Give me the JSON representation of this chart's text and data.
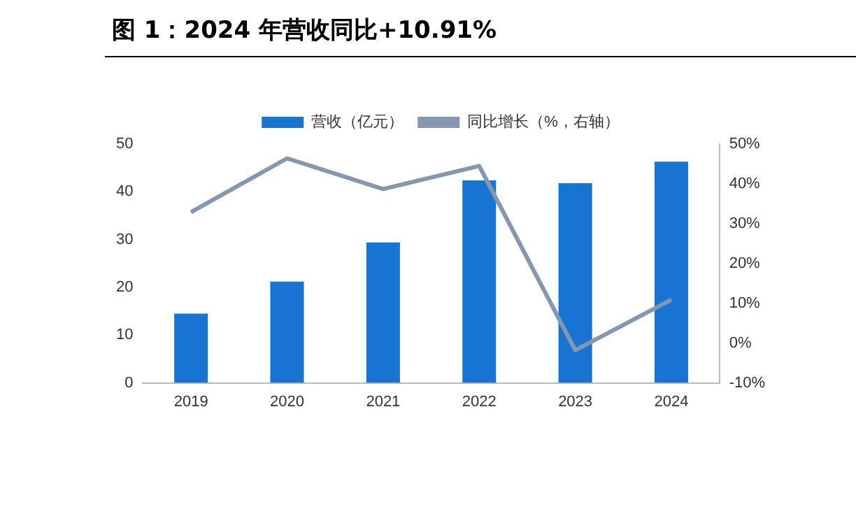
{
  "chart_data": {
    "type": "bar",
    "title": "图 1：2024 年营收同比+10.91%",
    "categories": [
      "2019",
      "2020",
      "2021",
      "2022",
      "2023",
      "2024"
    ],
    "series": [
      {
        "name": "营收（亿元）",
        "color": "#1874d2",
        "values": [
          14.5,
          21.2,
          29.4,
          42.4,
          41.8,
          46.3
        ]
      },
      {
        "name": "同比增长（%，右轴）",
        "type": "line",
        "axis": "y2",
        "color": "#8497b0",
        "marker": "none",
        "values": [
          32.9,
          46.4,
          38.7,
          44.5,
          -1.8,
          10.9
        ]
      }
    ],
    "ylim": [
      0,
      50
    ],
    "yticks": [
      0,
      10,
      20,
      30,
      40,
      50
    ],
    "y2lim": [
      -10,
      50
    ],
    "y2ticks": [
      {
        "value": -10,
        "label": "-10%"
      },
      {
        "value": 0,
        "label": "0%"
      },
      {
        "value": 10,
        "label": "10%"
      },
      {
        "value": 20,
        "label": "20%"
      },
      {
        "value": 30,
        "label": "30%"
      },
      {
        "value": 40,
        "label": "40%"
      },
      {
        "value": 50,
        "label": "50%"
      }
    ],
    "grid": false,
    "legend": "top"
  }
}
